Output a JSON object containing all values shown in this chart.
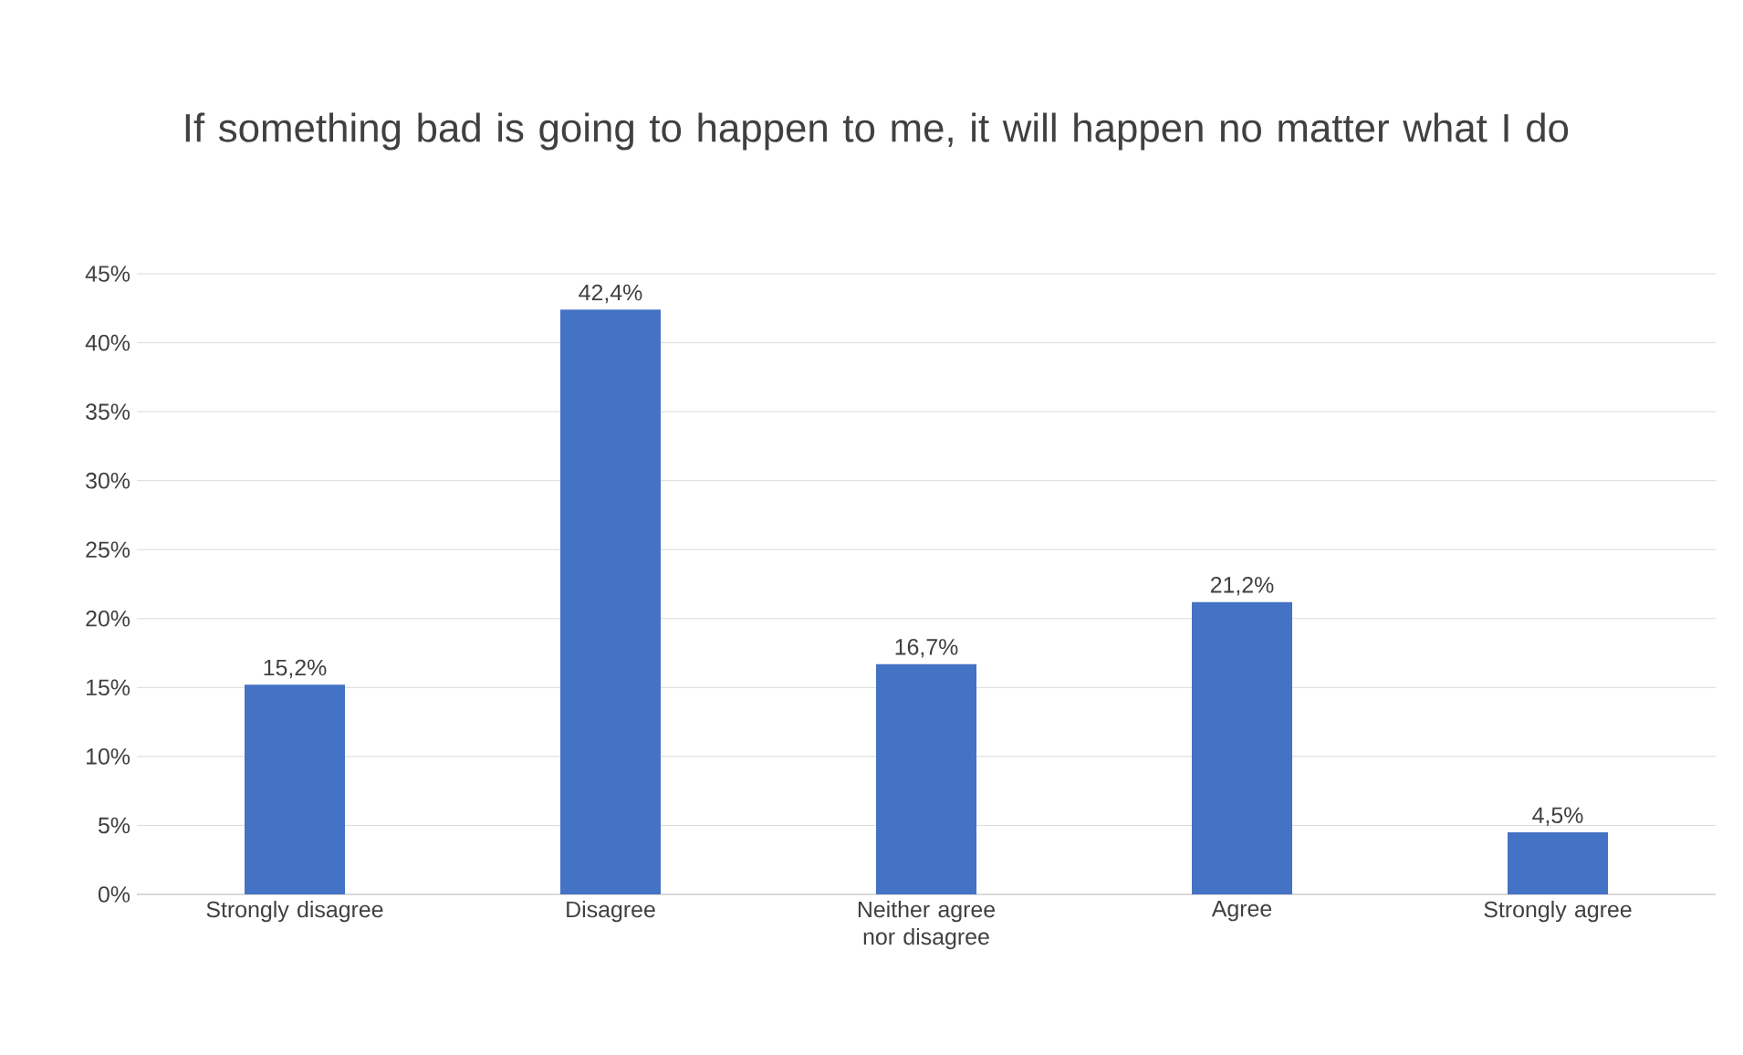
{
  "chart_data": {
    "type": "bar",
    "title": "If something bad is going to happen to me, it will happen no matter what I do",
    "categories": [
      "Strongly disagree",
      "Disagree",
      "Neither agree nor disagree",
      "Agree",
      "Strongly agree"
    ],
    "values": [
      15.2,
      42.4,
      16.7,
      21.2,
      4.5
    ],
    "value_labels": [
      "15,2%",
      "42,4%",
      "16,7%",
      "21,2%",
      "4,5%"
    ],
    "color": "#4472c4",
    "ylim": [
      0,
      45
    ],
    "yticks": [
      {
        "value": 0,
        "label": "0%"
      },
      {
        "value": 5,
        "label": "5%"
      },
      {
        "value": 10,
        "label": "10%"
      },
      {
        "value": 15,
        "label": "15%"
      },
      {
        "value": 20,
        "label": "20%"
      },
      {
        "value": 25,
        "label": "25%"
      },
      {
        "value": 30,
        "label": "30%"
      },
      {
        "value": 35,
        "label": "35%"
      },
      {
        "value": 40,
        "label": "40%"
      },
      {
        "value": 45,
        "label": "45%"
      }
    ],
    "grid": "y"
  }
}
